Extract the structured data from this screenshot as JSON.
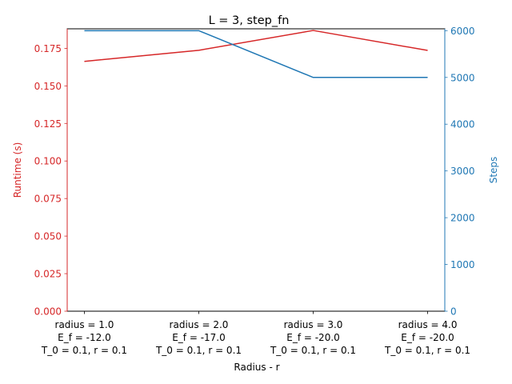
{
  "chart_data": {
    "type": "line",
    "title": "L = 3, step_fn",
    "xlabel": "Radius - r",
    "ylabel_left": "Runtime (s)",
    "ylabel_right": "Steps",
    "categories": [
      [
        "radius = 1.0",
        "E_f = -12.0",
        "T_0 = 0.1, r = 0.1"
      ],
      [
        "radius = 2.0",
        "E_f = -17.0",
        "T_0 = 0.1, r = 0.1"
      ],
      [
        "radius = 3.0",
        "E_f = -20.0",
        "T_0 = 0.1, r = 0.1"
      ],
      [
        "radius = 4.0",
        "E_f = -20.0",
        "T_0 = 0.1, r = 0.1"
      ]
    ],
    "left_axis": {
      "ylim": [
        0,
        0.188
      ],
      "ticks": [
        0.0,
        0.025,
        0.05,
        0.075,
        0.1,
        0.125,
        0.15,
        0.175
      ],
      "tick_labels": [
        "0.000",
        "0.025",
        "0.050",
        "0.075",
        "0.100",
        "0.125",
        "0.150",
        "0.175"
      ],
      "color": "#d62728"
    },
    "right_axis": {
      "ylim": [
        0,
        6040
      ],
      "ticks": [
        0,
        1000,
        2000,
        3000,
        4000,
        5000,
        6000
      ],
      "tick_labels": [
        "0",
        "1000",
        "2000",
        "3000",
        "4000",
        "5000",
        "6000"
      ],
      "color": "#1f77b4"
    },
    "series": [
      {
        "axis": "left",
        "color": "#d62728",
        "values": [
          0.1663,
          0.1737,
          0.1869,
          0.1736
        ]
      },
      {
        "axis": "right",
        "color": "#1f77b4",
        "values": [
          6000,
          6000,
          5000,
          5000
        ]
      }
    ],
    "grid": false
  }
}
